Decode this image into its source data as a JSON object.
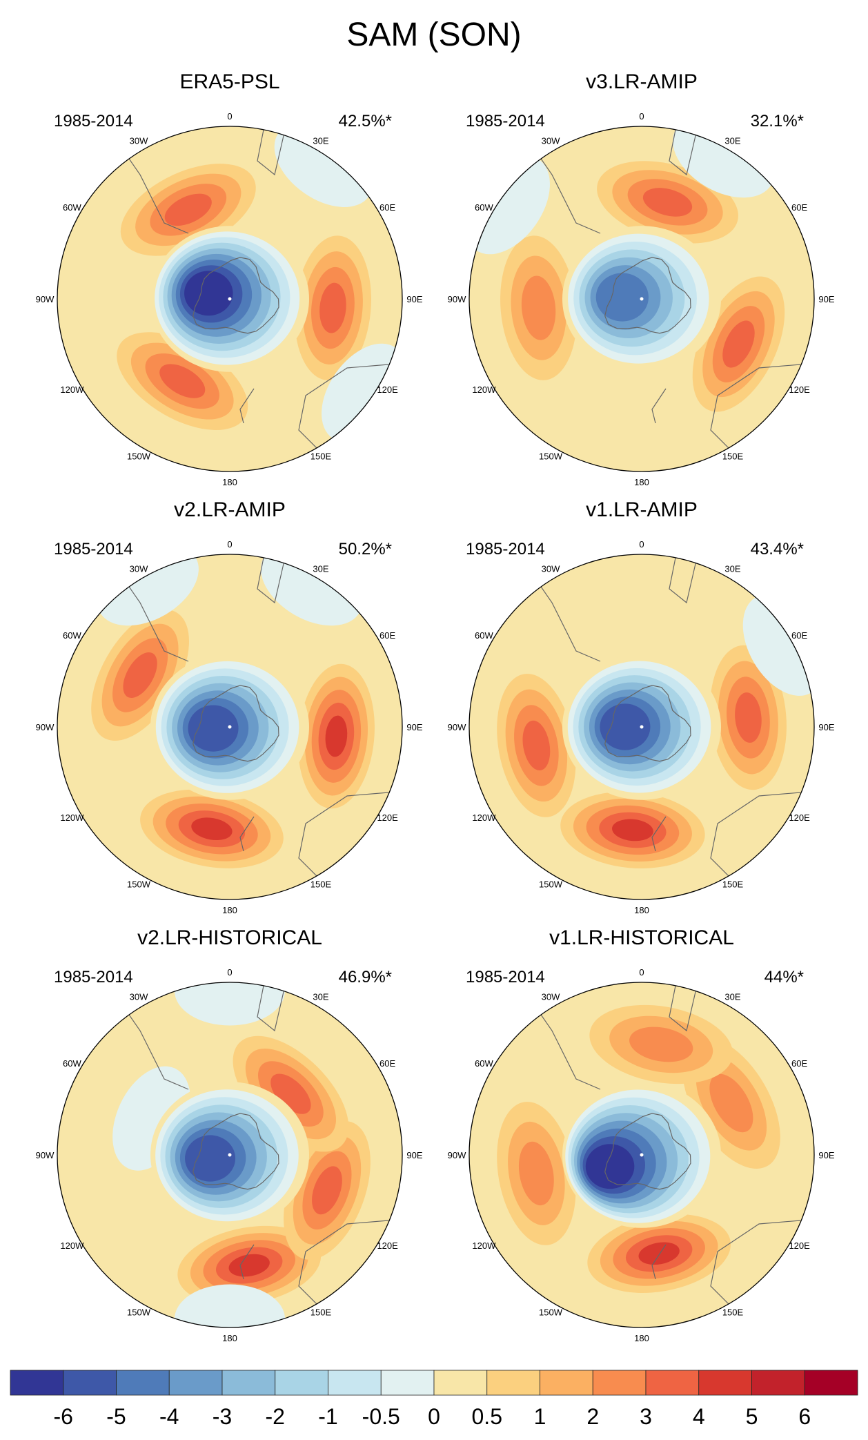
{
  "chart_data": {
    "type": "contour-map",
    "title": "SAM (SON)",
    "projection": "south-polar-stereographic",
    "longitude_labels": [
      "0",
      "30E",
      "60E",
      "90E",
      "120E",
      "150E",
      "180",
      "150W",
      "120W",
      "90W",
      "60W",
      "30W"
    ],
    "colorbar": {
      "levels": [
        "-6",
        "-5",
        "-4",
        "-3",
        "-2",
        "-1",
        "-0.5",
        "0",
        "0.5",
        "1",
        "2",
        "3",
        "4",
        "5",
        "6"
      ],
      "colors": [
        "#313695",
        "#3e58a8",
        "#4f7bb9",
        "#6a9bc9",
        "#8bbbd9",
        "#a9d4e6",
        "#c8e6f0",
        "#e2f1f1",
        "#f8e6a8",
        "#fbd07f",
        "#fbb062",
        "#f88c4f",
        "#ef6443",
        "#d8382e",
        "#c2222b",
        "#a50026"
      ]
    },
    "panels": [
      {
        "title": "ERA5-PSL",
        "period": "1985-2014",
        "variance": "42.5%*",
        "blobs": [
          {
            "lon": -75,
            "r": 0.13,
            "v": -6
          },
          {
            "lon": -150,
            "r": 0.55,
            "v": 3
          },
          {
            "lon": -25,
            "r": 0.57,
            "v": 3
          },
          {
            "lon": 95,
            "r": 0.6,
            "v": 3
          },
          {
            "lon": 35,
            "r": 0.95,
            "v": 0
          },
          {
            "lon": 125,
            "r": 0.95,
            "v": 0
          }
        ]
      },
      {
        "title": "v3.LR-AMIP",
        "period": "1985-2014",
        "variance": "32.1%*",
        "blobs": [
          {
            "lon": -85,
            "r": 0.12,
            "v": -4
          },
          {
            "lon": 115,
            "r": 0.62,
            "v": 3
          },
          {
            "lon": -95,
            "r": 0.6,
            "v": 2
          },
          {
            "lon": 15,
            "r": 0.58,
            "v": 3
          },
          {
            "lon": -55,
            "r": 0.95,
            "v": 0
          },
          {
            "lon": 30,
            "r": 0.95,
            "v": 0
          }
        ]
      },
      {
        "title": "v2.LR-AMIP",
        "period": "1985-2014",
        "variance": "50.2%*",
        "blobs": [
          {
            "lon": -95,
            "r": 0.1,
            "v": -5
          },
          {
            "lon": -170,
            "r": 0.6,
            "v": 4
          },
          {
            "lon": 95,
            "r": 0.62,
            "v": 4
          },
          {
            "lon": -60,
            "r": 0.6,
            "v": 3
          },
          {
            "lon": -30,
            "r": 0.95,
            "v": 0
          },
          {
            "lon": 30,
            "r": 0.95,
            "v": 0
          }
        ]
      },
      {
        "title": "v1.LR-AMIP",
        "period": "1985-2014",
        "variance": "43.4%*",
        "blobs": [
          {
            "lon": -90,
            "r": 0.1,
            "v": -5
          },
          {
            "lon": -175,
            "r": 0.6,
            "v": 4
          },
          {
            "lon": 85,
            "r": 0.62,
            "v": 3
          },
          {
            "lon": -100,
            "r": 0.62,
            "v": 3
          },
          {
            "lon": 60,
            "r": 0.95,
            "v": 0
          }
        ]
      },
      {
        "title": "v2.LR-HISTORICAL",
        "period": "1985-2014",
        "variance": "46.9%*",
        "blobs": [
          {
            "lon": -100,
            "r": 0.12,
            "v": -5
          },
          {
            "lon": 170,
            "r": 0.65,
            "v": 4
          },
          {
            "lon": 110,
            "r": 0.6,
            "v": 3
          },
          {
            "lon": 45,
            "r": 0.5,
            "v": 3
          },
          {
            "lon": -65,
            "r": 0.5,
            "v": 0
          },
          {
            "lon": 0,
            "r": 0.95,
            "v": 0
          },
          {
            "lon": -180,
            "r": 0.95,
            "v": 0
          }
        ]
      },
      {
        "title": "v1.LR-HISTORICAL",
        "period": "1985-2014",
        "variance": "44%*",
        "blobs": [
          {
            "lon": -110,
            "r": 0.2,
            "v": -6
          },
          {
            "lon": 170,
            "r": 0.58,
            "v": 4
          },
          {
            "lon": -100,
            "r": 0.62,
            "v": 2
          },
          {
            "lon": 60,
            "r": 0.6,
            "v": 2
          },
          {
            "lon": 10,
            "r": 0.65,
            "v": 2
          }
        ]
      }
    ]
  }
}
